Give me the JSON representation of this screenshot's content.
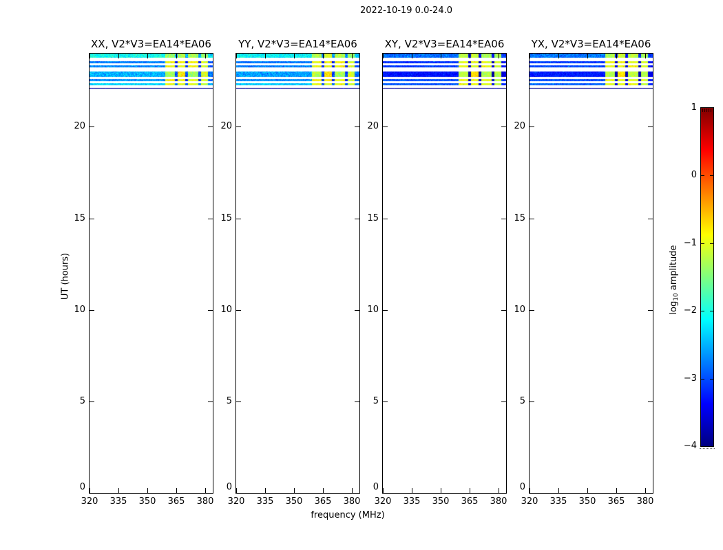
{
  "colorbar": {
    "label": "log10 amplitude",
    "label_parts": {
      "prefix": "log",
      "sub": "10",
      "suffix": " amplitude"
    },
    "tick_values": [
      1,
      0,
      -1,
      -2,
      -3,
      -4
    ],
    "tick_labels": [
      "1",
      "0",
      "−1",
      "−2",
      "−3",
      "−4"
    ],
    "min": -4,
    "max": 1,
    "colormap": "jet"
  },
  "chart_data": {
    "type": "heatmap",
    "title": "2022-10-19 0.0-24.0",
    "xlabel": "frequency (MHz)",
    "ylabel": "UT (hours)",
    "xlim": [
      320,
      384
    ],
    "ylim": [
      0,
      24
    ],
    "x_ticks": [
      320,
      335,
      350,
      365,
      380
    ],
    "y_ticks": [
      0,
      5,
      10,
      15,
      20
    ],
    "clim": [
      -4,
      1
    ],
    "colormap": "jet",
    "colorbar_label": "log10 amplitude",
    "legend": "none",
    "grid": false,
    "block_bands": [
      [
        359.5,
        364.2
      ],
      [
        365.8,
        369.8
      ],
      [
        371.2,
        376.4
      ],
      [
        377.8,
        381.6
      ]
    ],
    "panels": [
      {
        "label": "XX, V2*V3=EA14*EA06",
        "pol": "XX",
        "stripes": [
          {
            "ut": [
              23.78,
              24.0
            ],
            "amp": -2.05,
            "noise": 0.35,
            "block_amps": [
              -1.35,
              -1.25,
              -1.3,
              -1.45
            ]
          },
          {
            "ut": [
              23.48,
              23.6
            ],
            "amp": -2.75,
            "noise": 0.3,
            "block_amps": [
              -0.95,
              -0.9,
              -0.85,
              -1.1
            ]
          },
          {
            "ut": [
              23.26,
              23.37
            ],
            "amp": -2.7,
            "noise": 0.3,
            "block_amps": [
              -0.9,
              -0.95,
              -0.9,
              -1.05
            ]
          },
          {
            "ut": [
              22.72,
              23.02
            ],
            "amp": -2.5,
            "noise": 0.35,
            "block_amps": [
              -1.3,
              -0.8,
              -1.35,
              -1.05
            ]
          },
          {
            "ut": [
              22.5,
              22.61
            ],
            "amp": -2.65,
            "noise": 0.3,
            "block_amps": [
              -0.85,
              -0.9,
              -1.0,
              -1.1
            ]
          },
          {
            "ut": [
              22.28,
              22.39
            ],
            "amp": -2.3,
            "noise": 0.3,
            "block_amps": [
              -1.0,
              -0.95,
              -1.05,
              -1.2
            ]
          },
          {
            "ut": [
              22.09,
              22.13
            ],
            "amp": -3.9,
            "noise": 0.05,
            "block_amps": [
              -3.9,
              -3.9,
              -3.9,
              -3.9
            ]
          }
        ]
      },
      {
        "label": "YY, V2*V3=EA14*EA06",
        "pol": "YY",
        "stripes": [
          {
            "ut": [
              23.78,
              24.0
            ],
            "amp": -2.15,
            "noise": 0.35,
            "block_amps": [
              -1.3,
              -1.1,
              -1.25,
              -1.4
            ]
          },
          {
            "ut": [
              23.48,
              23.6
            ],
            "amp": -2.8,
            "noise": 0.3,
            "block_amps": [
              -0.9,
              -0.85,
              -0.9,
              -1.1
            ]
          },
          {
            "ut": [
              23.26,
              23.37
            ],
            "amp": -2.75,
            "noise": 0.3,
            "block_amps": [
              -0.95,
              -0.9,
              -0.85,
              -1.0
            ]
          },
          {
            "ut": [
              22.72,
              23.02
            ],
            "amp": -2.6,
            "noise": 0.35,
            "block_amps": [
              -1.25,
              -0.75,
              -1.3,
              -1.1
            ]
          },
          {
            "ut": [
              22.5,
              22.61
            ],
            "amp": -2.7,
            "noise": 0.3,
            "block_amps": [
              -0.9,
              -0.85,
              -0.95,
              -1.1
            ]
          },
          {
            "ut": [
              22.28,
              22.39
            ],
            "amp": -2.4,
            "noise": 0.3,
            "block_amps": [
              -0.95,
              -1.0,
              -1.0,
              -1.15
            ]
          },
          {
            "ut": [
              22.09,
              22.13
            ],
            "amp": -3.9,
            "noise": 0.05,
            "block_amps": [
              -3.9,
              -3.9,
              -3.9,
              -3.9
            ]
          }
        ]
      },
      {
        "label": "XY, V2*V3=EA14*EA06",
        "pol": "XY",
        "stripes": [
          {
            "ut": [
              23.78,
              24.0
            ],
            "amp": -2.85,
            "noise": 0.3,
            "block_amps": [
              -1.25,
              -1.15,
              -1.3,
              -1.35
            ]
          },
          {
            "ut": [
              23.48,
              23.6
            ],
            "amp": -3.15,
            "noise": 0.25,
            "block_amps": [
              -1.0,
              -0.95,
              -1.0,
              -1.15
            ]
          },
          {
            "ut": [
              23.26,
              23.37
            ],
            "amp": -3.1,
            "noise": 0.25,
            "block_amps": [
              -0.95,
              -1.0,
              -0.95,
              -1.1
            ]
          },
          {
            "ut": [
              22.72,
              23.02
            ],
            "amp": -3.3,
            "noise": 0.2,
            "block_amps": [
              -1.2,
              -0.7,
              -1.25,
              -1.2
            ]
          },
          {
            "ut": [
              22.5,
              22.61
            ],
            "amp": -3.0,
            "noise": 0.25,
            "block_amps": [
              -0.95,
              -0.9,
              -1.0,
              -1.15
            ]
          },
          {
            "ut": [
              22.28,
              22.39
            ],
            "amp": -2.95,
            "noise": 0.25,
            "block_amps": [
              -1.0,
              -0.95,
              -1.05,
              -1.2
            ]
          },
          {
            "ut": [
              22.09,
              22.13
            ],
            "amp": -3.9,
            "noise": 0.05,
            "block_amps": [
              -3.9,
              -3.9,
              -3.9,
              -3.9
            ]
          }
        ]
      },
      {
        "label": "YX, V2*V3=EA14*EA06",
        "pol": "YX",
        "stripes": [
          {
            "ut": [
              23.78,
              24.0
            ],
            "amp": -2.8,
            "noise": 0.3,
            "block_amps": [
              -1.3,
              -1.1,
              -1.2,
              -1.4
            ]
          },
          {
            "ut": [
              23.48,
              23.6
            ],
            "amp": -3.1,
            "noise": 0.25,
            "block_amps": [
              -0.95,
              -0.9,
              -1.0,
              -1.1
            ]
          },
          {
            "ut": [
              23.26,
              23.37
            ],
            "amp": -3.05,
            "noise": 0.25,
            "block_amps": [
              -1.0,
              -0.95,
              -0.9,
              -1.05
            ]
          },
          {
            "ut": [
              22.72,
              23.02
            ],
            "amp": -3.25,
            "noise": 0.2,
            "block_amps": [
              -1.25,
              -0.75,
              -1.2,
              -1.25
            ]
          },
          {
            "ut": [
              22.5,
              22.61
            ],
            "amp": -3.0,
            "noise": 0.25,
            "block_amps": [
              -0.9,
              -0.95,
              -1.0,
              -1.1
            ]
          },
          {
            "ut": [
              22.28,
              22.39
            ],
            "amp": -2.9,
            "noise": 0.25,
            "block_amps": [
              -1.0,
              -1.0,
              -0.95,
              -1.15
            ]
          },
          {
            "ut": [
              22.09,
              22.13
            ],
            "amp": -3.9,
            "noise": 0.05,
            "block_amps": [
              -3.9,
              -3.9,
              -3.9,
              -3.9
            ]
          }
        ]
      }
    ]
  }
}
